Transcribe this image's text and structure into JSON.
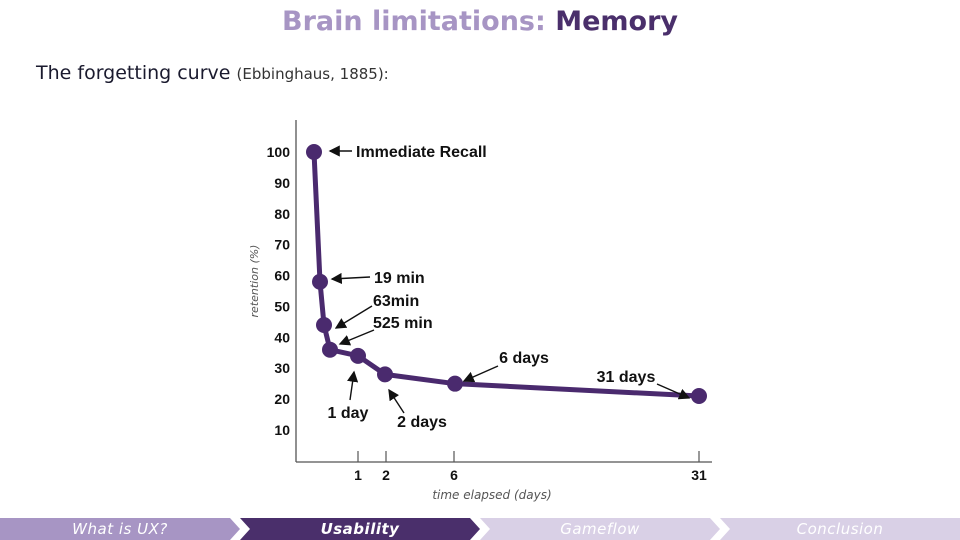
{
  "slide": {
    "title_light": "Brain limitations:",
    "title_dark": "Memory",
    "subtitle_main": "The forgetting curve",
    "subtitle_citation": "(Ebbinghaus, 1885):"
  },
  "chart_data": {
    "type": "line",
    "xlabel": "time elapsed (days)",
    "ylabel": "retention (%)",
    "ylim": [
      0,
      110
    ],
    "yticks": [
      10,
      20,
      30,
      40,
      50,
      60,
      70,
      80,
      90,
      100
    ],
    "xtick_labels": [
      "1",
      "2",
      "6",
      "31"
    ],
    "grid": false,
    "points": [
      {
        "label": "Immediate Recall",
        "y": 100
      },
      {
        "label": "19 min",
        "y": 58
      },
      {
        "label": "63min",
        "y": 44
      },
      {
        "label": "525 min",
        "y": 36
      },
      {
        "label": "1 day",
        "y": 34
      },
      {
        "label": "2 days",
        "y": 28
      },
      {
        "label": "6 days",
        "y": 25
      },
      {
        "label": "31 days",
        "y": 21
      }
    ],
    "color": "#4a2a6e"
  },
  "nav": {
    "items": [
      {
        "label": "What is UX?",
        "state": "done"
      },
      {
        "label": "Usability",
        "state": "active"
      },
      {
        "label": "Gameflow",
        "state": "upcoming"
      },
      {
        "label": "Conclusion",
        "state": "upcoming"
      }
    ],
    "colors": {
      "done": "#a795c4",
      "active": "#4a2f6b",
      "upcoming": "#d9d0e6"
    }
  }
}
